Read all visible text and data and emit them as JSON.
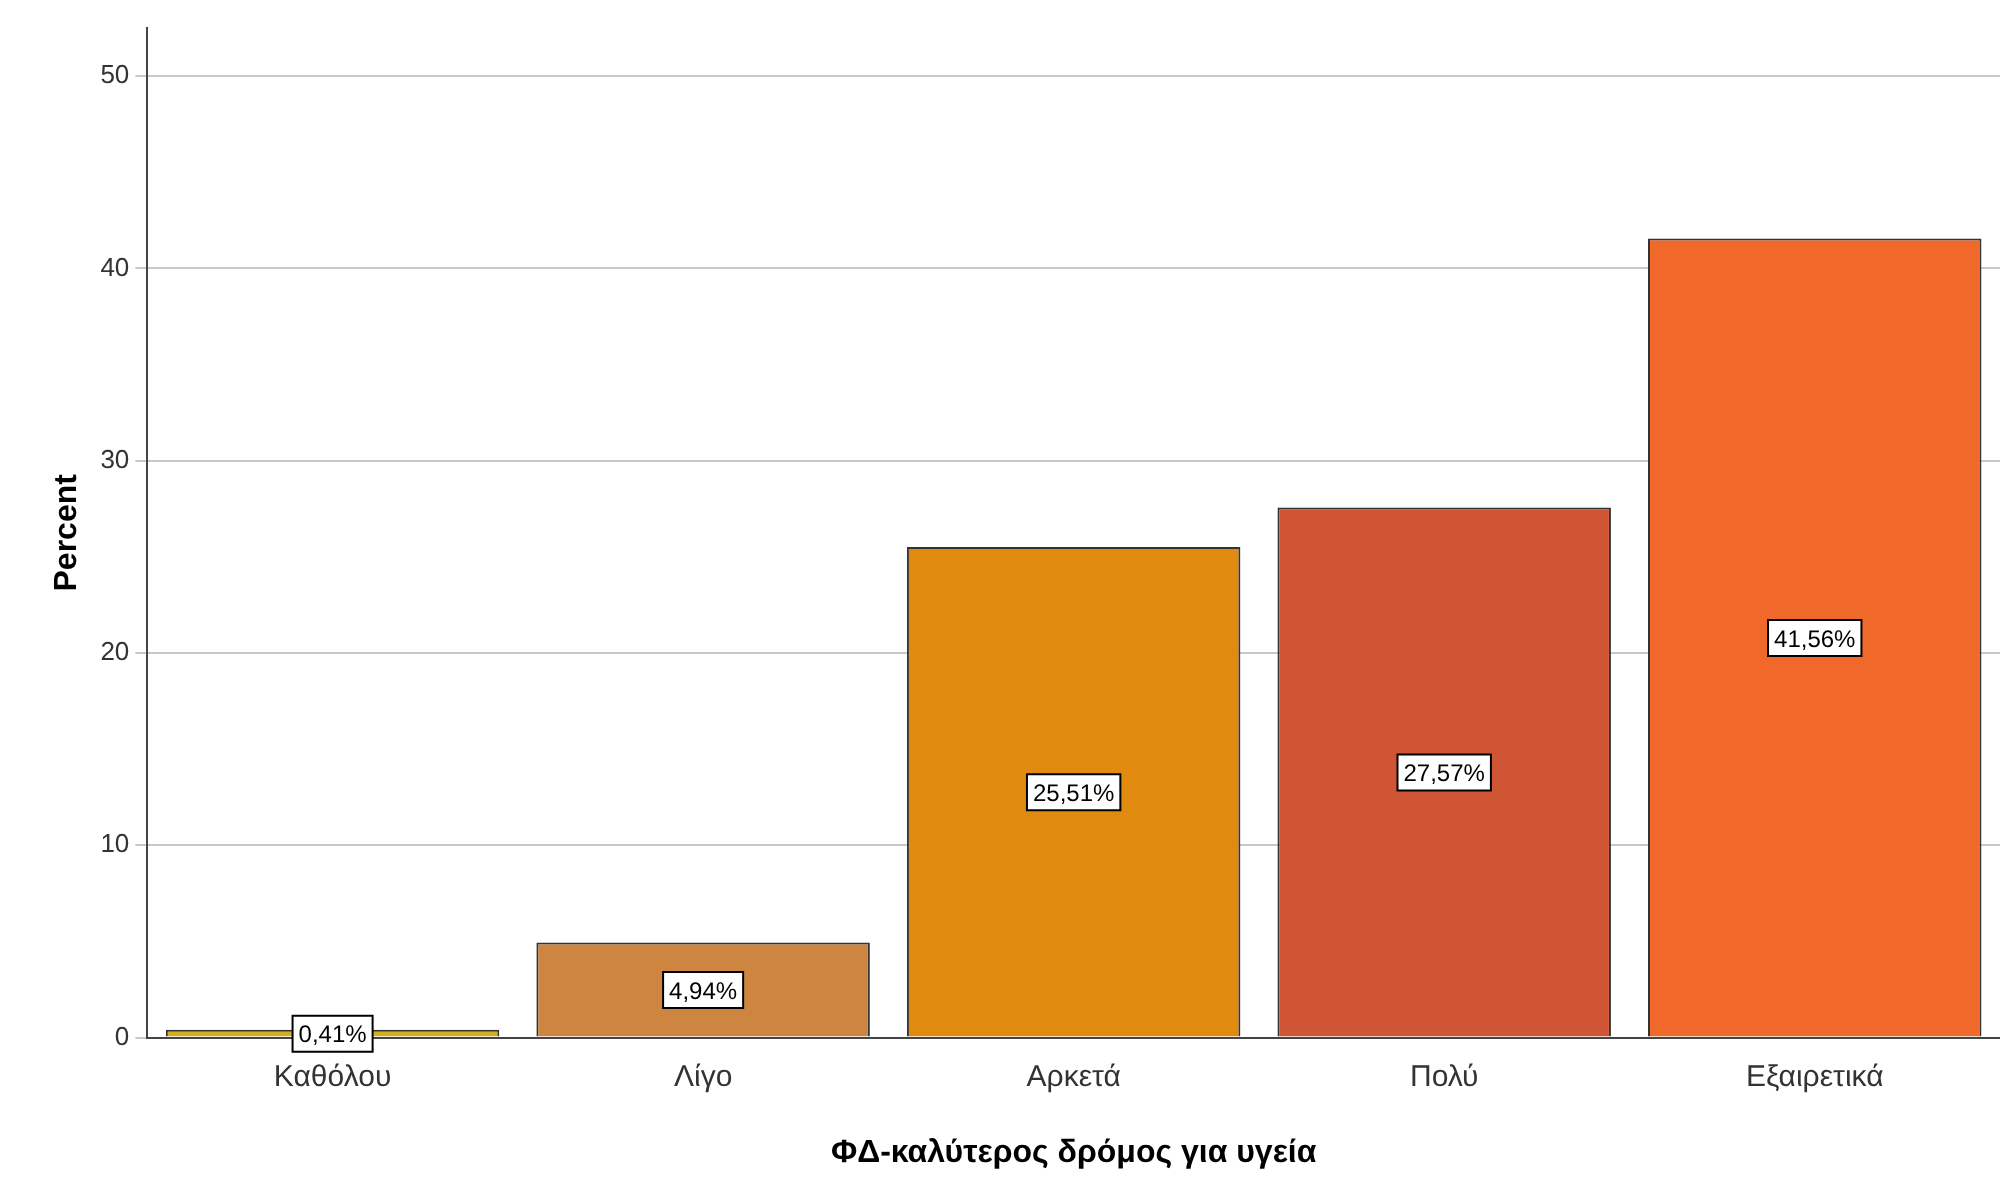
{
  "chart_data": {
    "type": "bar",
    "xlabel": "ΦΔ-καλύτερος δρόμος για υγεία",
    "ylabel": "Percent",
    "categories": [
      "Καθόλου",
      "Λίγο",
      "Αρκετά",
      "Πολύ",
      "Εξαιρετικά"
    ],
    "values": [
      0.41,
      4.94,
      25.51,
      27.57,
      41.56
    ],
    "colors": [
      "#d4b020",
      "#cd8540",
      "#e08a10",
      "#d05535",
      "#f0682a"
    ],
    "value_labels": [
      "0,41%",
      "4,94%",
      "25,51%",
      "27,57%",
      "41,56%"
    ],
    "ylim": [
      0,
      52.5
    ],
    "yticks": [
      0,
      10,
      20,
      30,
      40,
      50
    ],
    "grid": "y",
    "legend": false
  }
}
